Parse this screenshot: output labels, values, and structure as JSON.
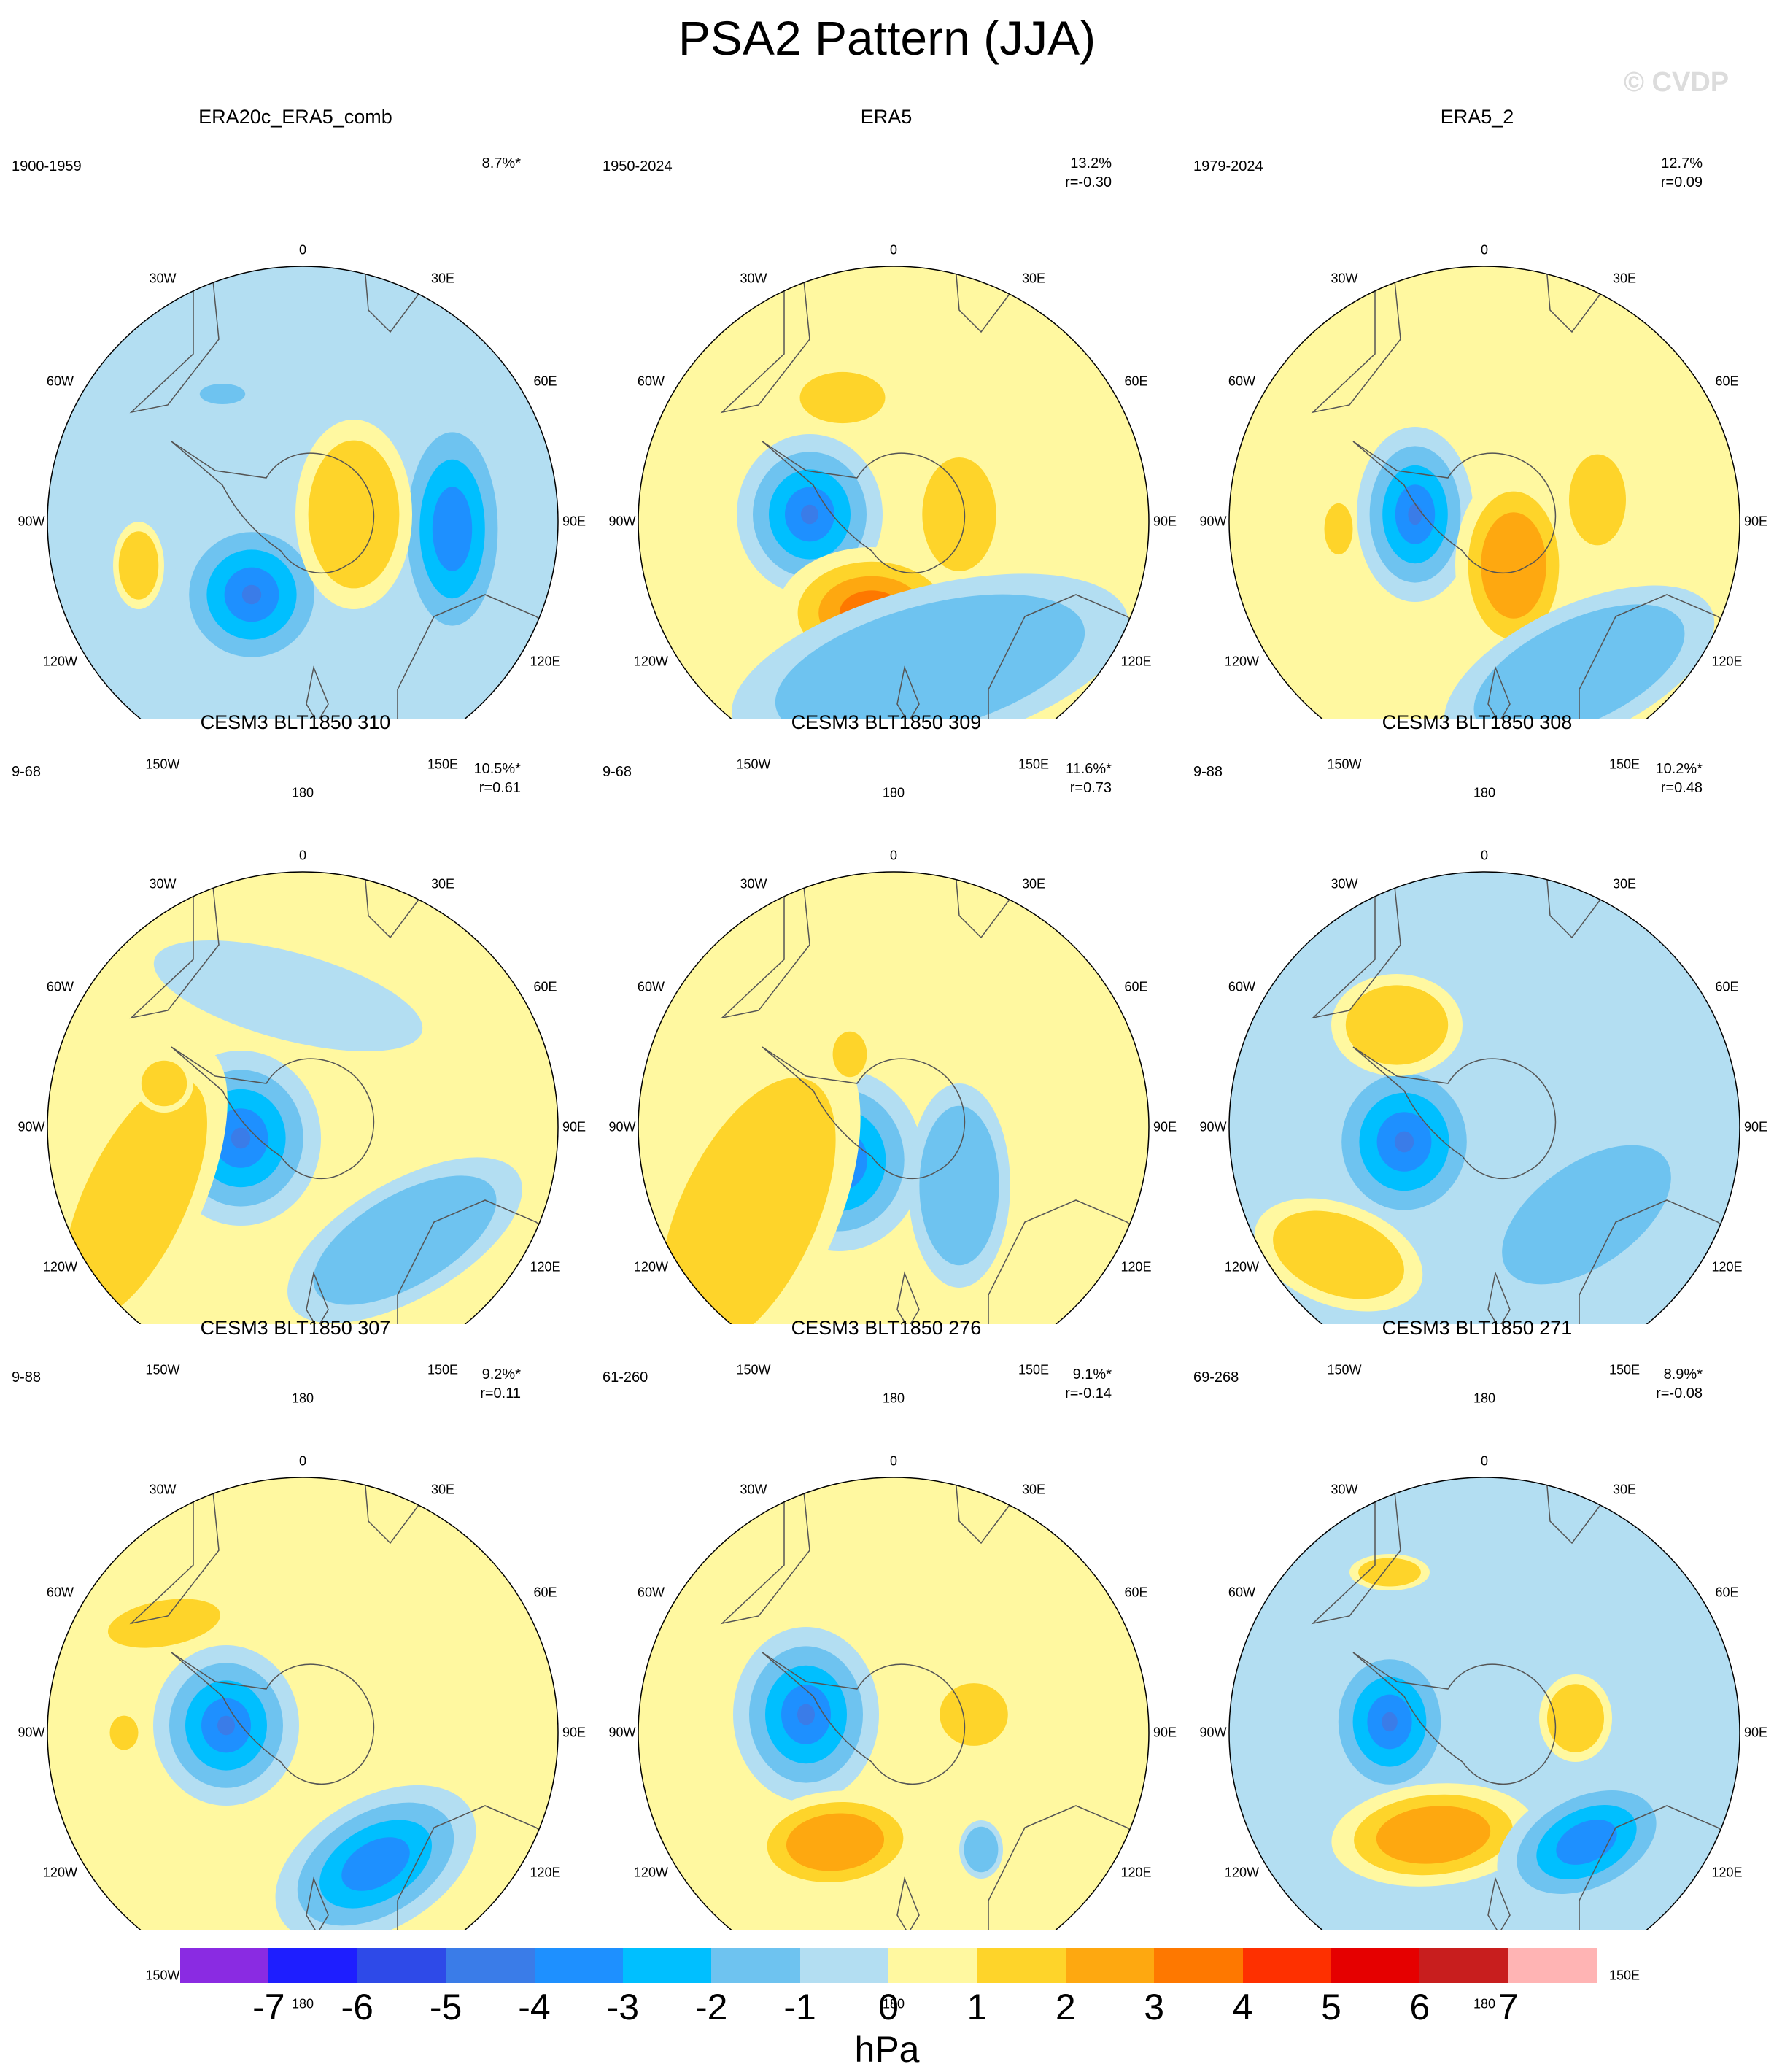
{
  "title": "PSA2 Pattern (JJA)",
  "watermark": "© CVDP",
  "longitude_labels": [
    "0",
    "30E",
    "60E",
    "90E",
    "120E",
    "150E",
    "180",
    "150W",
    "120W",
    "90W",
    "60W",
    "30W"
  ],
  "panels": [
    {
      "title": "ERA20c_ERA5_comb",
      "period": "1900-1959",
      "pct": "8.7%*",
      "r": ""
    },
    {
      "title": "ERA5",
      "period": "1950-2024",
      "pct": "13.2%",
      "r": "r=-0.30"
    },
    {
      "title": "ERA5_2",
      "period": "1979-2024",
      "pct": "12.7%",
      "r": "r=0.09"
    },
    {
      "title": "CESM3 BLT1850 310",
      "period": "9-68",
      "pct": "10.5%*",
      "r": "r=0.61"
    },
    {
      "title": "CESM3 BLT1850 309",
      "period": "9-68",
      "pct": "11.6%*",
      "r": "r=0.73"
    },
    {
      "title": "CESM3 BLT1850 308",
      "period": "9-88",
      "pct": "10.2%*",
      "r": "r=0.48"
    },
    {
      "title": "CESM3 BLT1850 307",
      "period": "9-88",
      "pct": "9.2%*",
      "r": "r=0.11"
    },
    {
      "title": "CESM3 BLT1850 276",
      "period": "61-260",
      "pct": "9.1%*",
      "r": "r=-0.14"
    },
    {
      "title": "CESM3 BLT1850 271",
      "period": "69-268",
      "pct": "8.9%*",
      "r": "r=-0.08"
    }
  ],
  "colorbar": {
    "units": "hPa",
    "tick_labels": [
      "-7",
      "-6",
      "-5",
      "-4",
      "-3",
      "-2",
      "-1",
      "0",
      "1",
      "2",
      "3",
      "4",
      "5",
      "6",
      "7"
    ],
    "colors": [
      "#8a2be2",
      "#1e1eff",
      "#2e4ae8",
      "#3a7ce8",
      "#1e90ff",
      "#00bfff",
      "#6ec3f0",
      "#b3def2",
      "#fff8a0",
      "#fed42a",
      "#fea810",
      "#fe7800",
      "#fe3000",
      "#e50000",
      "#c81e1e",
      "#ffb4b4"
    ]
  },
  "colors": {
    "negative_light": "#b3def2",
    "positive_light": "#fff8a0",
    "coast": "#555555"
  }
}
